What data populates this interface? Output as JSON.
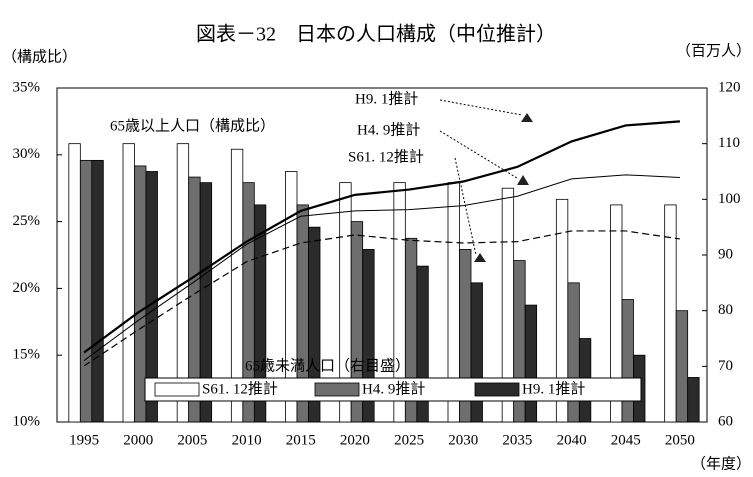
{
  "chart_data": {
    "type": "bar",
    "title": "図表－32　日本の人口構成（中位推計）",
    "y_label": "（構成比）",
    "y2_label": "（百万人）",
    "x_label": "（年度）",
    "annotations": [
      "65歳以上人口（構成比）",
      "65歳未満人口（右目盛）"
    ],
    "categories": [
      "1995",
      "2000",
      "2005",
      "2010",
      "2015",
      "2020",
      "2025",
      "2030",
      "2035",
      "2040",
      "2045",
      "2050"
    ],
    "ylim": [
      10,
      35
    ],
    "yticks": [
      {
        "value": 10,
        "label": "10%"
      },
      {
        "value": 15,
        "label": "15%"
      },
      {
        "value": 20,
        "label": "20%"
      },
      {
        "value": 25,
        "label": "25%"
      },
      {
        "value": 30,
        "label": "30%"
      },
      {
        "value": 35,
        "label": "35%"
      }
    ],
    "y2lim": [
      60,
      120
    ],
    "y2ticks": [
      60,
      70,
      80,
      90,
      100,
      110,
      120
    ],
    "series": [
      {
        "name": "S61. 12推計",
        "type": "bar",
        "axis": "y2",
        "color": "#ffffff",
        "values": [
          110,
          110,
          110,
          109,
          105,
          103,
          103,
          103,
          102,
          100,
          99,
          99
        ]
      },
      {
        "name": "H4. 9推計",
        "type": "bar",
        "axis": "y2",
        "color": "#6e6e6e",
        "values": [
          107,
          106,
          104,
          103,
          99,
          96,
          93,
          91,
          89,
          85,
          82,
          80
        ]
      },
      {
        "name": "H9. 1推計",
        "type": "bar",
        "axis": "y2",
        "color": "#2b2b2b",
        "values": [
          107,
          105,
          103,
          99,
          95,
          91,
          88,
          85,
          81,
          75,
          72,
          68
        ]
      },
      {
        "name": "H9. 1推計",
        "type": "line",
        "color": "#000000",
        "style": "thick",
        "values": [
          15.2,
          18.2,
          20.8,
          23.5,
          25.8,
          27.0,
          27.4,
          28.0,
          29.1,
          31.0,
          32.2,
          32.5
        ]
      },
      {
        "name": "H4. 9推計",
        "type": "line",
        "color": "#000000",
        "style": "thin",
        "values": [
          14.6,
          17.6,
          20.4,
          23.3,
          25.4,
          25.8,
          25.9,
          26.2,
          26.9,
          28.2,
          28.5,
          28.3
        ]
      },
      {
        "name": "S61. 12推計",
        "type": "line",
        "color": "#000000",
        "style": "dashed",
        "values": [
          14.2,
          16.9,
          19.5,
          22.0,
          23.4,
          24.0,
          23.6,
          23.4,
          23.5,
          24.3,
          24.3,
          23.7
        ]
      }
    ]
  }
}
